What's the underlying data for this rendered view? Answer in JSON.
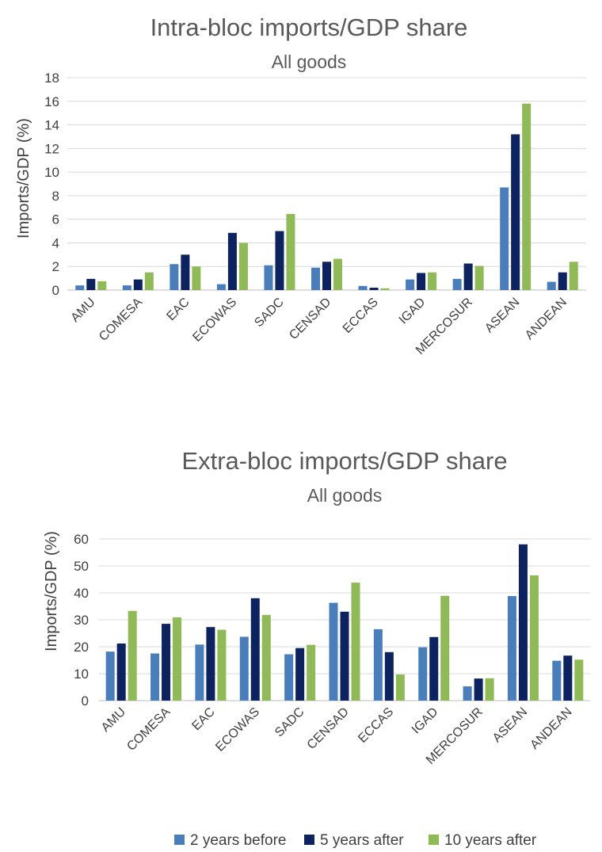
{
  "chart_data": [
    {
      "type": "bar",
      "title": "Intra-bloc imports/GDP share",
      "subtitle": "All goods",
      "ylabel": "Imports/GDP (%)",
      "ylim": [
        0,
        18
      ],
      "yticks": [
        0,
        2,
        4,
        6,
        8,
        10,
        12,
        14,
        16,
        18
      ],
      "grid": true,
      "categories": [
        "AMU",
        "COMESA",
        "EAC",
        "ECOWAS",
        "SADC",
        "CENSAD",
        "ECCAS",
        "IGAD",
        "MERCOSUR",
        "ASEAN",
        "ANDEAN"
      ],
      "series": [
        {
          "name": "2 years before",
          "values": [
            0.4,
            0.4,
            2.2,
            0.5,
            2.1,
            1.9,
            0.35,
            0.9,
            0.95,
            8.7,
            0.7
          ]
        },
        {
          "name": "5 years after",
          "values": [
            0.95,
            0.9,
            3.0,
            4.85,
            5.0,
            2.4,
            0.2,
            1.45,
            2.25,
            13.2,
            1.5
          ]
        },
        {
          "name": "10 years after",
          "values": [
            0.75,
            1.5,
            2.0,
            4.0,
            6.45,
            2.65,
            0.15,
            1.5,
            2.05,
            15.8,
            2.4
          ]
        }
      ]
    },
    {
      "type": "bar",
      "title": "Extra-bloc imports/GDP share",
      "subtitle": "All goods",
      "ylabel": "Imports/GDP (%)",
      "ylim": [
        0,
        60
      ],
      "yticks": [
        0,
        10,
        20,
        30,
        40,
        50,
        60
      ],
      "grid": true,
      "categories": [
        "AMU",
        "COMESA",
        "EAC",
        "ECOWAS",
        "SADC",
        "CENSAD",
        "ECCAS",
        "IGAD",
        "MERCOSUR",
        "ASEAN",
        "ANDEAN"
      ],
      "series": [
        {
          "name": "2 years before",
          "values": [
            18.2,
            17.5,
            20.8,
            23.7,
            17.2,
            36.3,
            26.5,
            19.8,
            5.3,
            38.8,
            14.8
          ]
        },
        {
          "name": "5 years after",
          "values": [
            21.2,
            28.5,
            27.3,
            38.0,
            19.5,
            33.0,
            18.0,
            23.6,
            8.2,
            58.0,
            16.7
          ]
        },
        {
          "name": "10 years after",
          "values": [
            33.3,
            30.9,
            26.3,
            31.8,
            20.7,
            43.8,
            9.7,
            38.9,
            8.3,
            46.5,
            15.2
          ]
        }
      ]
    }
  ],
  "legend": {
    "placement": "bottom",
    "items": [
      {
        "label": "2 years before",
        "color": "#4a7ebb"
      },
      {
        "label": "5 years after",
        "color": "#0d2360"
      },
      {
        "label": "10 years after",
        "color": "#8fba57"
      }
    ]
  },
  "colors": {
    "gridline": "#d9d9d9",
    "axis": "#bfbfbf"
  }
}
